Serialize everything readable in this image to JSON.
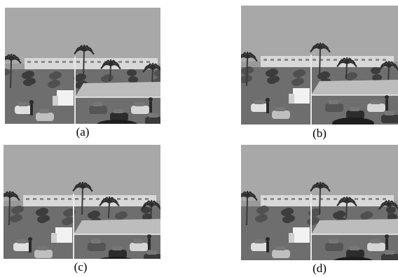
{
  "figure": {
    "panels": [
      {
        "id": "a",
        "label": "(a)",
        "image_description_icon": "parking-lot-scene-photo"
      },
      {
        "id": "b",
        "label": "(b)",
        "image_description_icon": "parking-lot-scene-photo"
      },
      {
        "id": "c",
        "label": "(c)",
        "image_description_icon": "parking-lot-scene-photo"
      },
      {
        "id": "d",
        "label": "(d)",
        "image_description_icon": "parking-lot-scene-photo"
      }
    ]
  },
  "colors": {
    "sky": "#a8a8a8",
    "buildings": "#d8d8d8",
    "canopy": "#bdbdbd",
    "ground": "#6e6e6e",
    "dark": "#2a2a2a"
  }
}
